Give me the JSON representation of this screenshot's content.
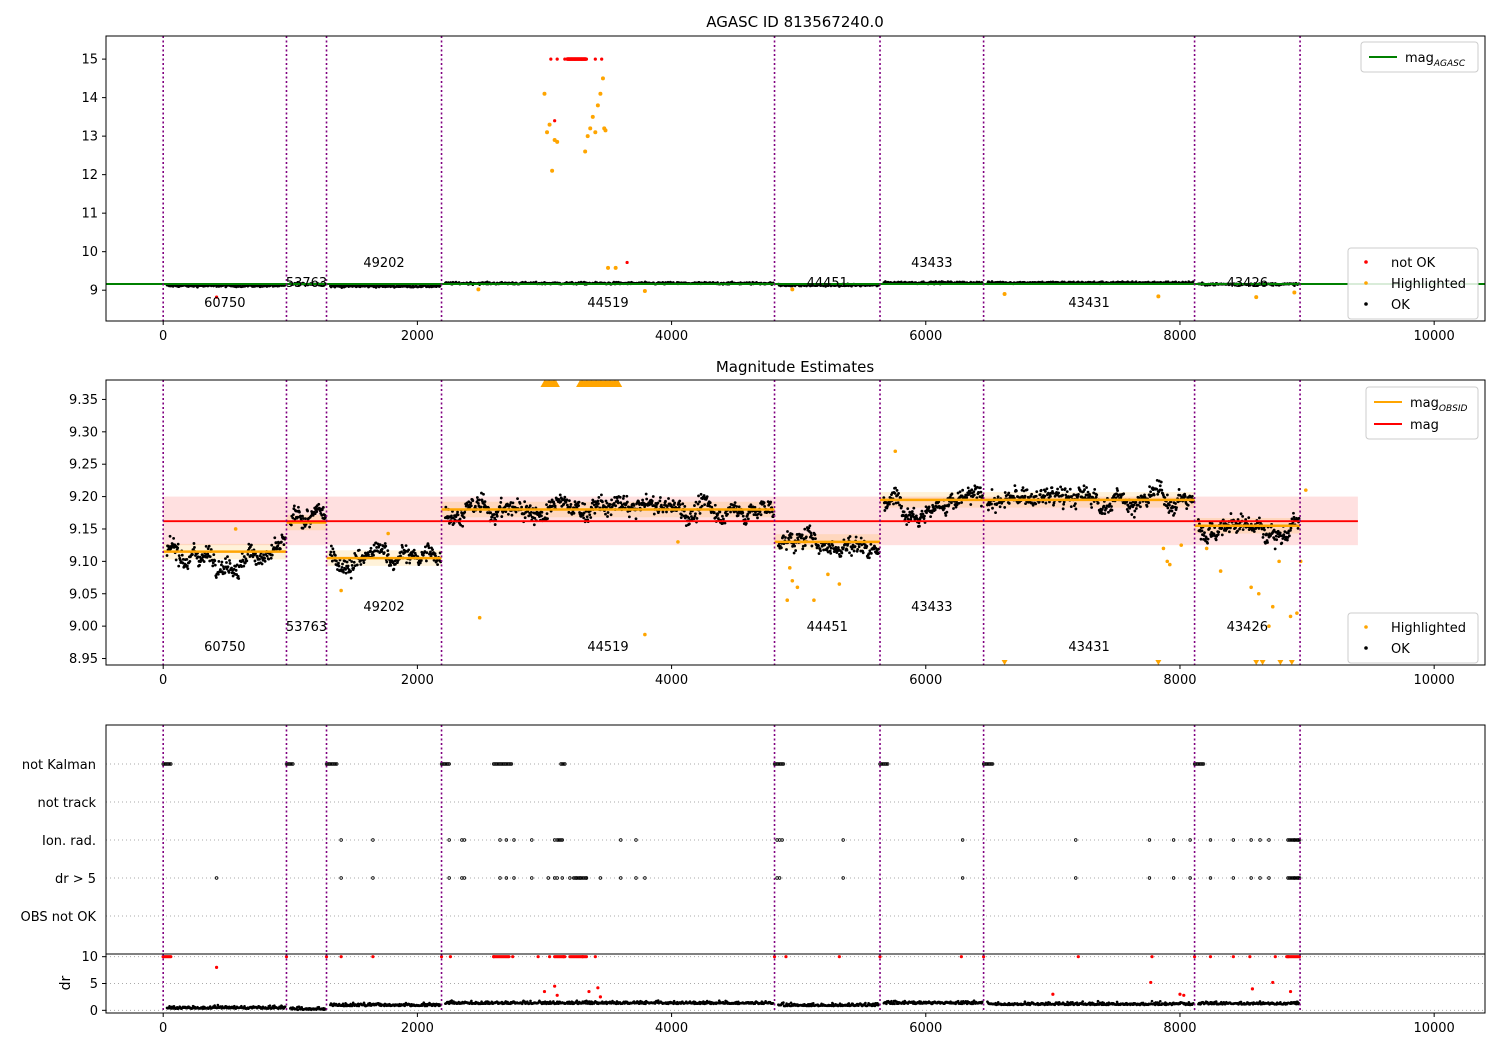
{
  "figure": {
    "panel1": {
      "title": "AGASC ID 813567240.0",
      "xticks": [
        0,
        2000,
        4000,
        6000,
        8000,
        10000
      ],
      "yticks": [
        9,
        10,
        11,
        12,
        13,
        14,
        15
      ],
      "legend_top": [
        {
          "label": "mag",
          "sub": "AGASC",
          "color": "#008000"
        }
      ],
      "legend_bottom": [
        {
          "label": "not OK",
          "color": "#ff0000"
        },
        {
          "label": "Highlighted",
          "color": "#ffa500"
        },
        {
          "label": "OK",
          "color": "#000000"
        }
      ]
    },
    "panel2": {
      "title": "Magnitude Estimates",
      "xticks": [
        0,
        2000,
        4000,
        6000,
        8000,
        10000
      ],
      "yticks": [
        "8.95",
        "9.00",
        "9.05",
        "9.10",
        "9.15",
        "9.20",
        "9.25",
        "9.30",
        "9.35"
      ],
      "legend_top": [
        {
          "label": "mag",
          "sub": "OBSID",
          "color": "#ffa500"
        },
        {
          "label": "mag",
          "sub": "",
          "color": "#ff0000"
        }
      ],
      "legend_bottom": [
        {
          "label": "Highlighted",
          "color": "#ffa500"
        },
        {
          "label": "OK",
          "color": "#000000"
        }
      ]
    },
    "panel3": {
      "flag_rows": [
        "not Kalman",
        "not track",
        "Ion. rad.",
        "dr > 5",
        "OBS not OK"
      ],
      "dr_ylabel": "dr",
      "dr_yticks": [
        0,
        5,
        10
      ],
      "xticks": [
        0,
        2000,
        4000,
        6000,
        8000,
        10000
      ]
    }
  },
  "chart_data": [
    {
      "type": "scatter",
      "title": "AGASC ID 813567240.0",
      "xlabel": "",
      "ylabel": "",
      "xlim": [
        -450,
        10400
      ],
      "ylim": [
        8.2,
        15.6
      ],
      "grid": false,
      "legend": [
        "top-right",
        "bottom-right"
      ],
      "mag_agasc": 9.16,
      "observation_boundaries": [
        0,
        970,
        1285,
        2190,
        4810,
        5640,
        6455,
        8115,
        8945
      ],
      "observations": [
        {
          "obsid": "60750",
          "start": 0,
          "end": 970,
          "mean_mag": 9.115
        },
        {
          "obsid": "53763",
          "start": 970,
          "end": 1285,
          "mean_mag": 9.16
        },
        {
          "obsid": "49202",
          "start": 1285,
          "end": 2190,
          "mean_mag": 9.105
        },
        {
          "obsid": "44519",
          "start": 2190,
          "end": 4810,
          "mean_mag": 9.18
        },
        {
          "obsid": "44451",
          "start": 4810,
          "end": 5640,
          "mean_mag": 9.13
        },
        {
          "obsid": "43433",
          "start": 5640,
          "end": 6455,
          "mean_mag": 9.195
        },
        {
          "obsid": "43431",
          "start": 6455,
          "end": 8115,
          "mean_mag": 9.195
        },
        {
          "obsid": "43426",
          "start": 8115,
          "end": 8945,
          "mean_mag": 9.155
        }
      ],
      "not_ok_points": [
        [
          3050,
          15.0
        ],
        [
          3100,
          15.0
        ],
        [
          3160,
          15.0
        ],
        [
          3200,
          15.0
        ],
        [
          3240,
          15.0
        ],
        [
          3290,
          15.0
        ],
        [
          3330,
          15.0
        ],
        [
          3400,
          15.0
        ],
        [
          3450,
          15.0
        ],
        [
          3080,
          13.4
        ],
        [
          420,
          8.82
        ],
        [
          3650,
          9.72
        ]
      ],
      "highlighted_points": [
        [
          3000,
          14.1
        ],
        [
          3020,
          13.1
        ],
        [
          3040,
          13.3
        ],
        [
          3060,
          12.1
        ],
        [
          3080,
          12.9
        ],
        [
          3100,
          12.85
        ],
        [
          3320,
          12.6
        ],
        [
          3340,
          13.0
        ],
        [
          3360,
          13.2
        ],
        [
          3380,
          13.5
        ],
        [
          3400,
          13.1
        ],
        [
          3420,
          13.8
        ],
        [
          3440,
          14.1
        ],
        [
          3460,
          14.5
        ],
        [
          3470,
          13.2
        ],
        [
          3480,
          13.15
        ],
        [
          3500,
          9.58
        ],
        [
          3560,
          9.58
        ],
        [
          3790,
          8.98
        ],
        [
          2480,
          9.02
        ],
        [
          4950,
          9.02
        ],
        [
          6620,
          8.9
        ],
        [
          7830,
          8.84
        ],
        [
          8600,
          8.82
        ],
        [
          8900,
          8.94
        ]
      ],
      "series_names": [
        "not OK",
        "Highlighted",
        "OK",
        "mag_AGASC"
      ]
    },
    {
      "type": "scatter",
      "title": "Magnitude Estimates",
      "xlabel": "",
      "ylabel": "",
      "xlim": [
        -450,
        10400
      ],
      "ylim": [
        8.94,
        9.38
      ],
      "grid": false,
      "legend": [
        "top-right",
        "bottom-right"
      ],
      "mag": 9.162,
      "mag_band": [
        9.125,
        9.2
      ],
      "mag_band_xrange": [
        0,
        9400
      ],
      "ok_noise": 0.012,
      "highlighted_points": [
        [
          2490,
          9.013
        ],
        [
          3790,
          8.987
        ],
        [
          4050,
          9.13
        ],
        [
          1400,
          9.055
        ],
        [
          1770,
          9.143
        ],
        [
          570,
          9.15
        ],
        [
          4910,
          9.04
        ],
        [
          4930,
          9.09
        ],
        [
          4950,
          9.07
        ],
        [
          4990,
          9.06
        ],
        [
          5050,
          9.13
        ],
        [
          5120,
          9.04
        ],
        [
          5230,
          9.08
        ],
        [
          5320,
          9.065
        ],
        [
          7870,
          9.12
        ],
        [
          7900,
          9.1
        ],
        [
          7920,
          9.095
        ],
        [
          8010,
          9.125
        ],
        [
          8210,
          9.12
        ],
        [
          8320,
          9.085
        ],
        [
          8560,
          9.06
        ],
        [
          8620,
          9.05
        ],
        [
          8700,
          9.0
        ],
        [
          8730,
          9.03
        ],
        [
          8780,
          9.1
        ],
        [
          8870,
          9.015
        ],
        [
          8920,
          9.02
        ],
        [
          8950,
          9.1
        ],
        [
          8990,
          9.21
        ],
        [
          5760,
          9.27
        ]
      ],
      "series_names": [
        "mag_OBSID",
        "mag",
        "Highlighted",
        "OK"
      ]
    },
    {
      "type": "scatter",
      "title": "",
      "xlabel": "",
      "ylabel": "dr",
      "xlim": [
        -450,
        10400
      ],
      "dr_ylim": [
        -0.5,
        10.5
      ],
      "flags": {
        "not Kalman": [
          [
            0,
            60
          ],
          [
            970,
            1020
          ],
          [
            1285,
            1370
          ],
          [
            2190,
            2250
          ],
          [
            2600,
            2740
          ],
          [
            3130,
            3160
          ],
          [
            4810,
            4880
          ],
          [
            5640,
            5700
          ],
          [
            6455,
            6530
          ],
          [
            8115,
            8190
          ]
        ],
        "not track": [],
        "Ion. rad.": [
          1400,
          1650,
          2250,
          2350,
          2370,
          2650,
          2700,
          2760,
          2900,
          3080,
          3100,
          3110,
          3120,
          3130,
          3140,
          3600,
          3720,
          4830,
          4850,
          4870,
          5350,
          6290,
          7180,
          7760,
          7950,
          8080,
          8240,
          8420,
          8560,
          8630,
          8700,
          8850,
          8900,
          8930
        ],
        "dr > 5": [
          420,
          1400,
          1650,
          2250,
          2350,
          2370,
          2650,
          2700,
          2760,
          2900,
          3030,
          3080,
          3100,
          3140,
          3200,
          3230,
          3250,
          3280,
          3330,
          3440,
          3600,
          3720,
          3790,
          4830,
          4850,
          5350,
          6290,
          7180,
          7760,
          7950,
          8080,
          8240,
          8420,
          8560,
          8630,
          8700,
          8850,
          8900,
          8930
        ],
        "OBS not OK": []
      },
      "dr_not_ok": [
        [
          0,
          10
        ],
        [
          970,
          10
        ],
        [
          1285,
          10
        ],
        [
          1400,
          10
        ],
        [
          1650,
          10
        ],
        [
          2190,
          10
        ],
        [
          2260,
          10
        ],
        [
          2600,
          10
        ],
        [
          2750,
          10
        ],
        [
          2950,
          10
        ],
        [
          3040,
          10
        ],
        [
          3150,
          10
        ],
        [
          3300,
          10
        ],
        [
          3400,
          10
        ],
        [
          4810,
          10
        ],
        [
          4900,
          10
        ],
        [
          5320,
          10
        ],
        [
          5640,
          10
        ],
        [
          6280,
          10
        ],
        [
          6455,
          10
        ],
        [
          7200,
          10
        ],
        [
          7780,
          10
        ],
        [
          8115,
          10
        ],
        [
          8240,
          10
        ],
        [
          8420,
          10
        ],
        [
          8550,
          10
        ],
        [
          8750,
          10
        ],
        [
          8850,
          10
        ],
        [
          420,
          8
        ],
        [
          3000,
          3.5
        ],
        [
          3080,
          4.5
        ],
        [
          3100,
          2.8
        ],
        [
          3350,
          3.5
        ],
        [
          3420,
          4.2
        ],
        [
          3440,
          2.5
        ],
        [
          7000,
          3.0
        ],
        [
          7770,
          5.2
        ],
        [
          8000,
          3.0
        ],
        [
          8030,
          2.8
        ],
        [
          8570,
          4.0
        ],
        [
          8730,
          5.2
        ],
        [
          8870,
          3.5
        ]
      ],
      "series_names": [
        "not OK",
        "OK"
      ]
    }
  ]
}
